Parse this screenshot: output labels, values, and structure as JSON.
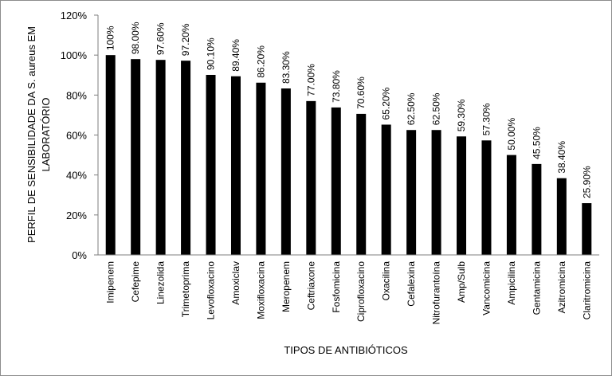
{
  "chart_data": {
    "type": "bar",
    "title": "",
    "xlabel": "TIPOS DE ANTIBIÓTICOS",
    "ylabel_line1": "PERFIL DE SENSIBILIDADE DA S. aureus EM",
    "ylabel_line2": "LABORATÓRIO",
    "ylim": [
      0,
      120
    ],
    "y_ticks": [
      0,
      20,
      40,
      60,
      80,
      100,
      120
    ],
    "y_tick_labels": [
      "0%",
      "20%",
      "40%",
      "60%",
      "80%",
      "100%",
      "120%"
    ],
    "grid": false,
    "legend": "none",
    "bar_color": "#000000",
    "categories": [
      "Imipenem",
      "Cefepime",
      "Linezolida",
      "Trimetoprima",
      "Levofloxacino",
      "Amoxiclav",
      "Moxifloxacina",
      "Meropenem",
      "Ceftriaxone",
      "Fosfomicina",
      "Ciprofloxacino",
      "Oxacilina",
      "Cefalexina",
      "Nitrofurantoína",
      "Amp/Sulb",
      "Vancomicina",
      "Ampicilina",
      "Gentamicina",
      "Azitromicina",
      "Claritromicina"
    ],
    "values": [
      100,
      98.0,
      97.6,
      97.2,
      90.1,
      89.4,
      86.2,
      83.3,
      77.0,
      73.8,
      70.6,
      65.2,
      62.5,
      62.5,
      59.3,
      57.3,
      50.0,
      45.5,
      38.4,
      25.9
    ],
    "data_labels": [
      "100%",
      "98.00%",
      "97.60%",
      "97.20%",
      "90.10%",
      "89.40%",
      "86.20%",
      "83.30%",
      "77.00%",
      "73.80%",
      "70.60%",
      "65.20%",
      "62.50%",
      "62.50%",
      "59.30%",
      "57.30%",
      "50.00%",
      "45.50%",
      "38.40%",
      "25.90%"
    ]
  }
}
